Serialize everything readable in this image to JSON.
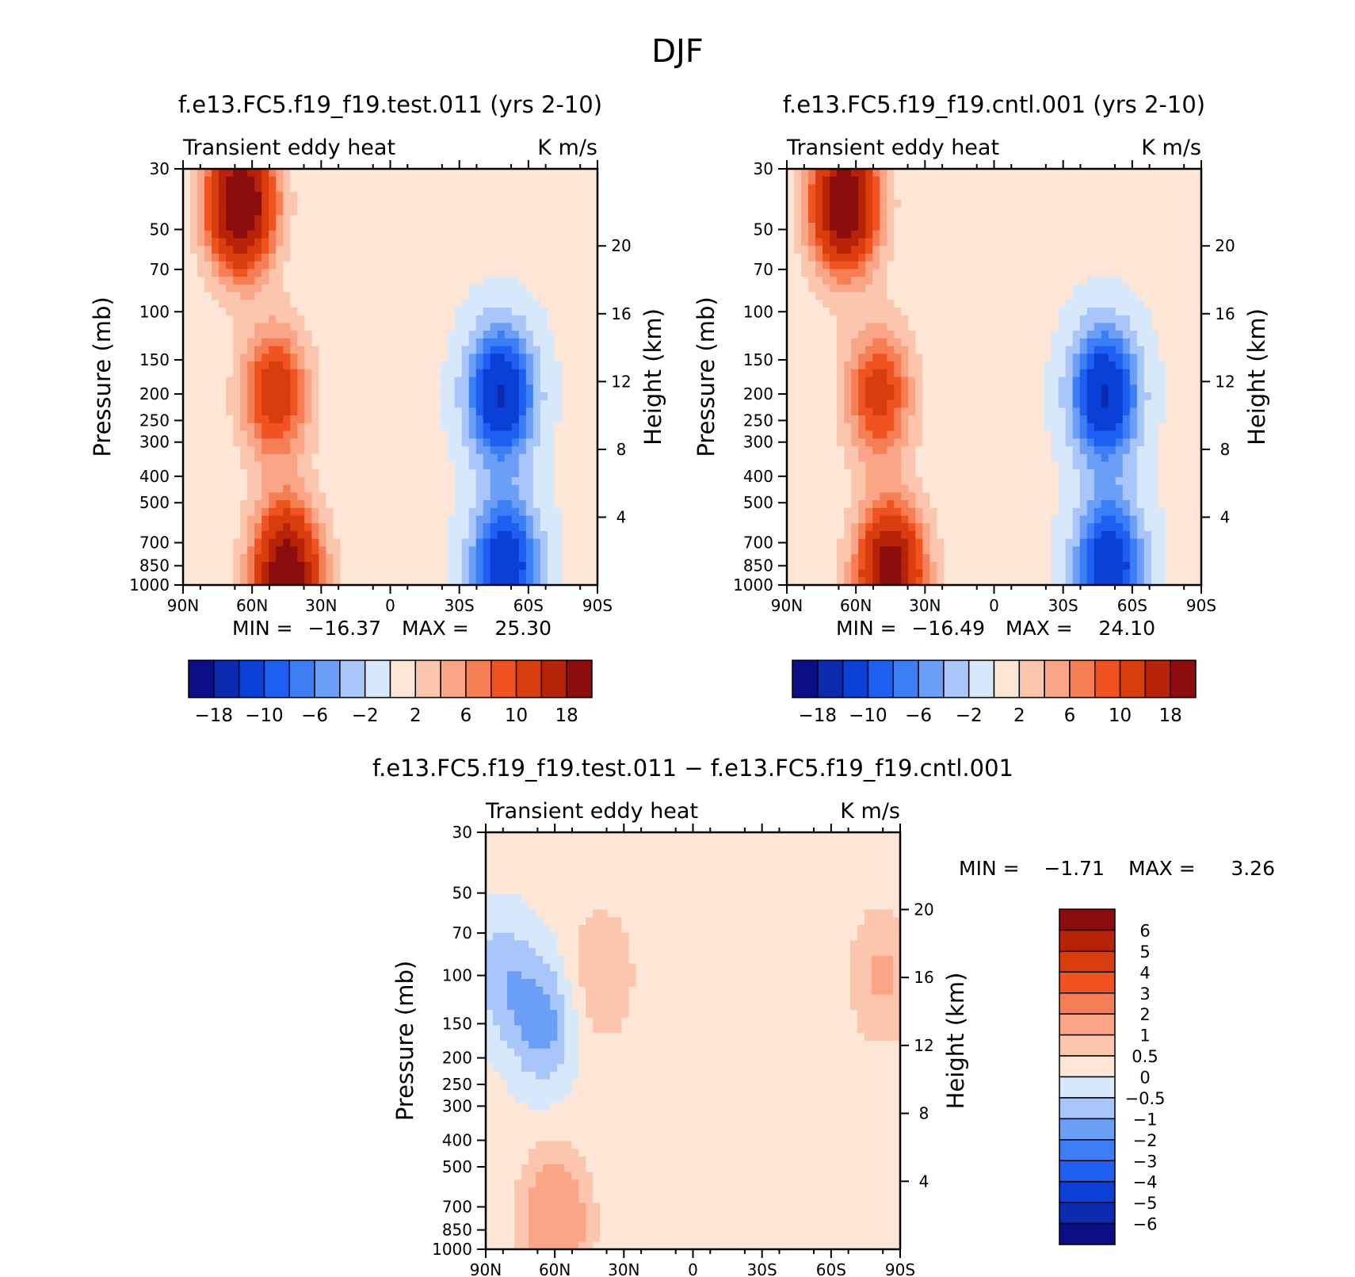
{
  "figure_title": "DJF",
  "chart_data": [
    {
      "type": "heatmap",
      "panel": "test",
      "title": "f.e13.FC5.f19_f19.test.011 (yrs 2-10)",
      "subtitle_left": "Transient eddy heat",
      "subtitle_right": "K m/s",
      "ylabel": "Pressure (mb)",
      "ylabel_right": "Height (km)",
      "xticks": [
        "90N",
        "60N",
        "30N",
        "0",
        "30S",
        "60S",
        "90S"
      ],
      "yticks": [
        "30",
        "50",
        "70",
        "100",
        "150",
        "200",
        "250",
        "300",
        "400",
        "500",
        "700",
        "850",
        "1000"
      ],
      "yticks_right": [
        "20",
        "16",
        "12",
        "8",
        "4"
      ],
      "stats": {
        "min_label": "MIN =",
        "min": "−16.37",
        "max_label": "MAX =",
        "max": "25.30"
      },
      "colorbar_levels": [
        -18,
        -14,
        -10,
        -8,
        -6,
        -4,
        -2,
        0,
        2,
        4,
        6,
        8,
        10,
        14,
        18
      ],
      "colorbar_labels": [
        "−18",
        "−10",
        "−6",
        "−2",
        "2",
        "6",
        "10",
        "18"
      ],
      "colorbar_orientation": "horizontal",
      "features": [
        {
          "lat": 65,
          "p": 40,
          "value": 24
        },
        {
          "lat": 50,
          "p": 200,
          "value": 12
        },
        {
          "lat": 45,
          "p": 900,
          "value": 22
        },
        {
          "lat": -48,
          "p": 200,
          "value": -15
        },
        {
          "lat": -50,
          "p": 850,
          "value": -14
        }
      ]
    },
    {
      "type": "heatmap",
      "panel": "cntl",
      "title": "f.e13.FC5.f19_f19.cntl.001 (yrs 2-10)",
      "subtitle_left": "Transient eddy heat",
      "subtitle_right": "K m/s",
      "ylabel": "Pressure (mb)",
      "ylabel_right": "Height (km)",
      "xticks": [
        "90N",
        "60N",
        "30N",
        "0",
        "30S",
        "60S",
        "90S"
      ],
      "yticks": [
        "30",
        "50",
        "70",
        "100",
        "150",
        "200",
        "250",
        "300",
        "400",
        "500",
        "700",
        "850",
        "1000"
      ],
      "yticks_right": [
        "20",
        "16",
        "12",
        "8",
        "4"
      ],
      "stats": {
        "min_label": "MIN =",
        "min": "−16.49",
        "max_label": "MAX =",
        "max": "24.10"
      },
      "colorbar_levels": [
        -18,
        -14,
        -10,
        -8,
        -6,
        -4,
        -2,
        0,
        2,
        4,
        6,
        8,
        10,
        14,
        18
      ],
      "colorbar_labels": [
        "−18",
        "−10",
        "−6",
        "−2",
        "2",
        "6",
        "10",
        "18"
      ],
      "colorbar_orientation": "horizontal",
      "features": [
        {
          "lat": 65,
          "p": 40,
          "value": 23
        },
        {
          "lat": 50,
          "p": 200,
          "value": 11
        },
        {
          "lat": 45,
          "p": 900,
          "value": 21
        },
        {
          "lat": -48,
          "p": 200,
          "value": -15
        },
        {
          "lat": -50,
          "p": 850,
          "value": -14
        }
      ]
    },
    {
      "type": "heatmap",
      "panel": "diff",
      "title": "f.e13.FC5.f19_f19.test.011 − f.e13.FC5.f19_f19.cntl.001",
      "subtitle_left": "Transient eddy heat",
      "subtitle_right": "K m/s",
      "ylabel": "Pressure (mb)",
      "ylabel_right": "Height (km)",
      "xticks": [
        "90N",
        "60N",
        "30N",
        "0",
        "30S",
        "60S",
        "90S"
      ],
      "yticks": [
        "30",
        "50",
        "70",
        "100",
        "150",
        "200",
        "250",
        "300",
        "400",
        "500",
        "700",
        "850",
        "1000"
      ],
      "yticks_right": [
        "20",
        "16",
        "12",
        "8",
        "4"
      ],
      "stats": {
        "min_label": "MIN =",
        "min": "−1.71",
        "max_label": "MAX =",
        "max": "3.26"
      },
      "colorbar_levels": [
        -6,
        -5,
        -4,
        -3,
        -2,
        -1,
        -0.5,
        0,
        0.5,
        1,
        2,
        3,
        4,
        5,
        6
      ],
      "colorbar_labels": [
        "6",
        "5",
        "4",
        "3",
        "2",
        "1",
        "0.5",
        "0",
        "−0.5",
        "−1",
        "−2",
        "−3",
        "−4",
        "−5",
        "−6"
      ],
      "colorbar_orientation": "vertical",
      "features": [
        {
          "lat": 65,
          "p": 150,
          "value": -1.4
        },
        {
          "lat": 83,
          "p": 100,
          "value": -1.0
        },
        {
          "lat": 60,
          "p": 800,
          "value": 1.8
        },
        {
          "lat": 40,
          "p": 100,
          "value": 0.8
        },
        {
          "lat": -82,
          "p": 100,
          "value": 0.9
        }
      ]
    }
  ],
  "colors": {
    "colorbar": [
      "#0b0e85",
      "#0a2bb0",
      "#0a3fd8",
      "#1f5ef2",
      "#3b7ef5",
      "#6b9ef7",
      "#a9c6fa",
      "#d8e8fb",
      "#fde6d6",
      "#fbc6ad",
      "#f9a586",
      "#f57e55",
      "#f0531f",
      "#d93d0e",
      "#b72306",
      "#8c0d0d"
    ],
    "colorbar_diff": [
      "#8c0d0d",
      "#b72306",
      "#d93d0e",
      "#f0531f",
      "#f57e55",
      "#f9a586",
      "#fbc6ad",
      "#fde6d6",
      "#d8e8fb",
      "#a9c6fa",
      "#6b9ef7",
      "#3b7ef5",
      "#1f5ef2",
      "#0a3fd8",
      "#0a2bb0",
      "#0b0e85"
    ]
  }
}
